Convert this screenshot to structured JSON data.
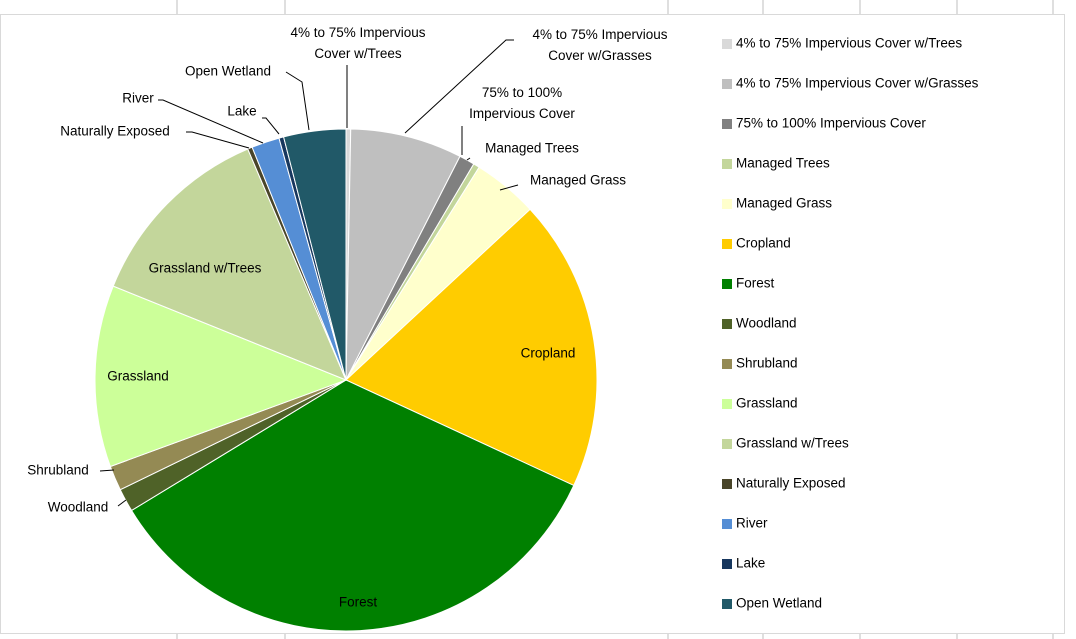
{
  "chart_data": {
    "type": "pie",
    "categories": [
      "4% to 75% Impervious Cover w/Trees",
      "4% to 75% Impervious Cover w/Grasses",
      "75% to 100% Impervious Cover",
      "Managed Trees",
      "Managed Grass",
      "Cropland",
      "Forest",
      "Woodland",
      "Shrubland",
      "Grassland",
      "Grassland w/Trees",
      "Naturally Exposed",
      "River",
      "Lake",
      "Open Wetland"
    ],
    "values": [
      0.3,
      7.2,
      1.0,
      0.4,
      4.2,
      18.8,
      34.4,
      1.5,
      1.6,
      11.7,
      12.5,
      0.3,
      1.8,
      0.3,
      4.0
    ],
    "colors": [
      "#d9d9d9",
      "#bfbfbf",
      "#808080",
      "#c3d69b",
      "#ffffcc",
      "#ffcc00",
      "#008000",
      "#4f6228",
      "#948a54",
      "#ccff99",
      "#c3d69b",
      "#494529",
      "#558ed5",
      "#17375e",
      "#215968"
    ],
    "legend": "right"
  }
}
